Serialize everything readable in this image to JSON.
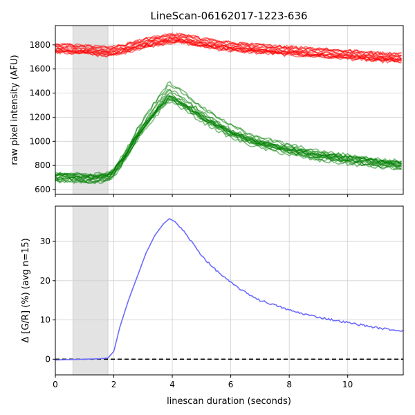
{
  "chart_data": [
    {
      "type": "line",
      "title": "LineScan-06162017-1223-636",
      "ylabel": "raw pixel intensity (AFU)",
      "xlabel": "",
      "xlim": [
        0,
        11.9
      ],
      "ylim": [
        560,
        1960
      ],
      "xticks": [
        0,
        2,
        4,
        6,
        8,
        10
      ],
      "yticks": [
        600,
        800,
        1000,
        1200,
        1400,
        1600,
        1800
      ],
      "grid": true,
      "shaded_region": [
        0.6,
        1.8
      ],
      "colors": {
        "red": "#ff0000",
        "green": "#008000",
        "shade": "#d3d3d3"
      },
      "series": [
        {
          "group": "red",
          "count": 15,
          "x": [
            0,
            0.6,
            1.0,
            1.4,
            1.8,
            2.2,
            2.6,
            3.0,
            3.5,
            4.0,
            4.5,
            5.0,
            5.5,
            6.0,
            6.5,
            7.0,
            8.0,
            9.0,
            10.0,
            11.0,
            11.9
          ],
          "y": [
            1770,
            1765,
            1760,
            1750,
            1745,
            1760,
            1785,
            1810,
            1835,
            1855,
            1845,
            1820,
            1800,
            1785,
            1775,
            1765,
            1750,
            1735,
            1720,
            1700,
            1690
          ]
        },
        {
          "group": "green",
          "count": 15,
          "x": [
            0,
            0.6,
            1.0,
            1.4,
            1.8,
            2.0,
            2.4,
            2.8,
            3.2,
            3.6,
            3.9,
            4.2,
            4.6,
            5.0,
            5.5,
            6.0,
            6.5,
            7.0,
            8.0,
            9.0,
            10.0,
            11.0,
            11.9
          ],
          "y": [
            700,
            695,
            690,
            690,
            700,
            740,
            880,
            1050,
            1190,
            1320,
            1400,
            1360,
            1290,
            1220,
            1150,
            1080,
            1030,
            990,
            930,
            880,
            850,
            820,
            800
          ]
        }
      ]
    },
    {
      "type": "line",
      "title": "",
      "xlabel": "linescan duration (seconds)",
      "ylabel": "Δ [G/R] (%) (avg n=15)",
      "xlim": [
        0,
        11.9
      ],
      "ylim": [
        -4,
        39
      ],
      "xticks": [
        0,
        2,
        4,
        6,
        8,
        10
      ],
      "yticks": [
        0,
        10,
        20,
        30
      ],
      "grid": true,
      "shaded_region": [
        0.6,
        1.8
      ],
      "zero_line": {
        "y": 0,
        "style": "dashed",
        "color": "#000000"
      },
      "series": [
        {
          "color": "#6b6bff",
          "x": [
            0,
            0.5,
            1.0,
            1.5,
            1.8,
            2.0,
            2.2,
            2.5,
            2.8,
            3.1,
            3.4,
            3.7,
            3.9,
            4.1,
            4.4,
            4.7,
            5.0,
            5.3,
            5.6,
            6.0,
            6.5,
            7.0,
            7.5,
            8.0,
            8.5,
            9.0,
            9.5,
            10.0,
            10.5,
            11.0,
            11.5,
            11.9
          ],
          "y": [
            -0.2,
            -0.1,
            0,
            0.1,
            0.3,
            2,
            8,
            15,
            21,
            27,
            31.5,
            34.5,
            35.8,
            35,
            32.5,
            29.5,
            26.5,
            24,
            22,
            19.5,
            17,
            15,
            13.8,
            12.5,
            11.5,
            10.7,
            10,
            9.3,
            8.7,
            8,
            7.5,
            7.3
          ]
        }
      ]
    }
  ]
}
